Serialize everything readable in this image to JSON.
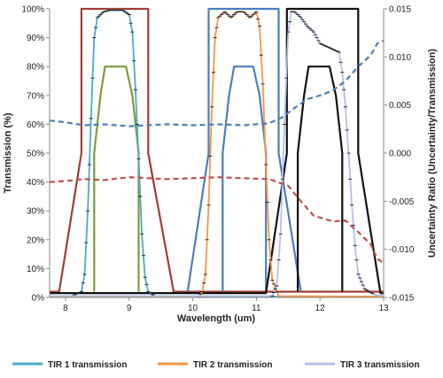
{
  "chart_data": {
    "type": "line",
    "title": "",
    "xlabel": "Wavelength (um)",
    "ylabel": "Transmission (%)",
    "y2label": "Uncertainty Ratio (Uncertainty/Transmission)",
    "xlim": [
      7.75,
      13
    ],
    "ylim": [
      0,
      100
    ],
    "y2lim": [
      -0.015,
      0.015
    ],
    "grid": false,
    "legend_position": "bottom",
    "x_ticks": [
      "8",
      "9",
      "10",
      "11",
      "12",
      "13"
    ],
    "y_ticks": [
      "0%",
      "10%",
      "20%",
      "30%",
      "40%",
      "50%",
      "60%",
      "70%",
      "80%",
      "90%",
      "100%"
    ],
    "y2_ticks": [
      "-0.015",
      "-0.010",
      "-0.005",
      "0.000",
      "0.005",
      "0.010",
      "0.015"
    ],
    "legend": [
      {
        "label": "TIR 1 transmission",
        "color": "#4bacc6"
      },
      {
        "label": "TIR 2 transmission",
        "color": "#f79646"
      },
      {
        "label": "TIR 3 transmission",
        "color": "#b4c0e4"
      }
    ],
    "series": [
      {
        "name": "TIR 1 transmission",
        "axis": "left",
        "color": "#4bacc6",
        "style": "solid",
        "markers": true,
        "x": [
          7.75,
          8.1,
          8.25,
          8.3,
          8.35,
          8.4,
          8.45,
          8.5,
          8.6,
          8.7,
          8.8,
          8.9,
          9.0,
          9.05,
          9.1,
          9.15,
          9.2,
          9.25,
          9.3,
          9.4,
          9.5,
          13
        ],
        "y": [
          0.5,
          0.5,
          2,
          8,
          30,
          62,
          90,
          97,
          99,
          99.5,
          99.5,
          99.5,
          98,
          92,
          72,
          48,
          22,
          7,
          2,
          0.5,
          0.3,
          0.3
        ]
      },
      {
        "name": "TIR 2 transmission",
        "axis": "left",
        "color": "#f79646",
        "style": "solid",
        "markers": true,
        "x": [
          7.75,
          10.1,
          10.15,
          10.2,
          10.25,
          10.3,
          10.35,
          10.4,
          10.5,
          10.6,
          10.7,
          10.8,
          10.9,
          11.0,
          11.05,
          11.1,
          11.15,
          11.2,
          11.25,
          11.35,
          13
        ],
        "y": [
          0.3,
          0.3,
          2,
          8,
          32,
          66,
          90,
          97,
          99,
          97,
          99,
          99,
          97,
          99,
          94,
          74,
          46,
          20,
          6,
          0.5,
          0.3
        ]
      },
      {
        "name": "TIR 3 transmission",
        "axis": "left",
        "color": "#b4c0e4",
        "style": "solid",
        "markers": true,
        "x": [
          7.75,
          11.25,
          11.32,
          11.38,
          11.44,
          11.5,
          11.55,
          11.6,
          11.7,
          11.8,
          11.9,
          12.0,
          12.1,
          12.2,
          12.3,
          12.35,
          12.4,
          12.45,
          12.5,
          12.55,
          12.6,
          12.7,
          12.85,
          13
        ],
        "y": [
          0.5,
          0.5,
          4,
          22,
          60,
          92,
          99,
          99,
          97,
          94,
          92,
          88,
          87,
          86,
          85,
          78,
          66,
          50,
          32,
          18,
          8,
          3,
          1,
          0.5
        ]
      },
      {
        "name": "Band 1 spectral envelope",
        "axis": "left",
        "color": "#a23c34",
        "style": "solid",
        "x": [
          7.75,
          7.9,
          8.25,
          8.25,
          9.3,
          9.3,
          9.7,
          13
        ],
        "y": [
          2,
          2,
          50,
          100,
          100,
          50,
          2,
          2
        ]
      },
      {
        "name": "Band 1 inner envelope",
        "axis": "left",
        "color": "#7a9e3a",
        "style": "solid",
        "x": [
          8.45,
          8.45,
          8.55,
          8.62,
          8.95,
          9.05,
          9.15,
          9.15
        ],
        "y": [
          2,
          50,
          70,
          80,
          80,
          70,
          50,
          2
        ]
      },
      {
        "name": "Band 2 spectral envelope",
        "axis": "left",
        "color": "#4a7ebb",
        "style": "solid",
        "x": [
          9.92,
          10.25,
          10.25,
          11.35,
          11.35,
          11.7
        ],
        "y": [
          2,
          50,
          100,
          100,
          50,
          2
        ]
      },
      {
        "name": "Band 2 inner envelope",
        "axis": "left",
        "color": "#4a7ebb",
        "style": "solid",
        "x": [
          10.47,
          10.47,
          10.57,
          10.65,
          10.95,
          11.05,
          11.15,
          11.15
        ],
        "y": [
          2,
          50,
          70,
          80,
          80,
          70,
          50,
          2
        ]
      },
      {
        "name": "Band 3 spectral envelope",
        "axis": "left",
        "color": "#111111",
        "style": "solid",
        "x": [
          7.75,
          11.15,
          11.48,
          11.48,
          12.6,
          12.6,
          12.95,
          13
        ],
        "y": [
          1.5,
          1.5,
          50,
          100,
          100,
          50,
          1.5,
          1.5
        ]
      },
      {
        "name": "Band 3 inner envelope",
        "axis": "left",
        "color": "#111111",
        "style": "solid",
        "x": [
          11.65,
          11.65,
          11.75,
          11.82,
          12.15,
          12.25,
          12.35,
          12.35
        ],
        "y": [
          2,
          50,
          70,
          80,
          80,
          70,
          50,
          2
        ]
      },
      {
        "name": "Uncertainty ratio (blue)",
        "axis": "right",
        "color": "#4a7ebb",
        "style": "dashed",
        "x": [
          7.75,
          8.0,
          8.3,
          8.6,
          9.0,
          9.3,
          9.6,
          10.0,
          10.4,
          10.8,
          11.2,
          11.4,
          11.6,
          11.8,
          12.0,
          12.2,
          12.4,
          12.6,
          12.8,
          12.9,
          13
        ],
        "y": [
          0.0034,
          0.0032,
          0.0029,
          0.003,
          0.0028,
          0.0029,
          0.003,
          0.0029,
          0.003,
          0.0029,
          0.0031,
          0.0037,
          0.0047,
          0.0056,
          0.006,
          0.0065,
          0.0075,
          0.009,
          0.0102,
          0.0114,
          0.0117
        ]
      },
      {
        "name": "Uncertainty ratio (red)",
        "axis": "right",
        "color": "#c0504d",
        "style": "dashed",
        "x": [
          7.75,
          8.0,
          8.3,
          8.6,
          9.0,
          9.3,
          9.6,
          10.0,
          10.4,
          10.8,
          11.2,
          11.5,
          11.7,
          11.9,
          12.2,
          12.4,
          12.6,
          12.8,
          12.9,
          13
        ],
        "y": [
          -0.003,
          -0.0029,
          -0.0027,
          -0.0028,
          -0.0025,
          -0.0026,
          -0.0027,
          -0.0026,
          -0.0025,
          -0.0026,
          -0.0027,
          -0.0034,
          -0.005,
          -0.0065,
          -0.0071,
          -0.007,
          -0.0082,
          -0.0095,
          -0.011,
          -0.0114
        ]
      }
    ]
  }
}
